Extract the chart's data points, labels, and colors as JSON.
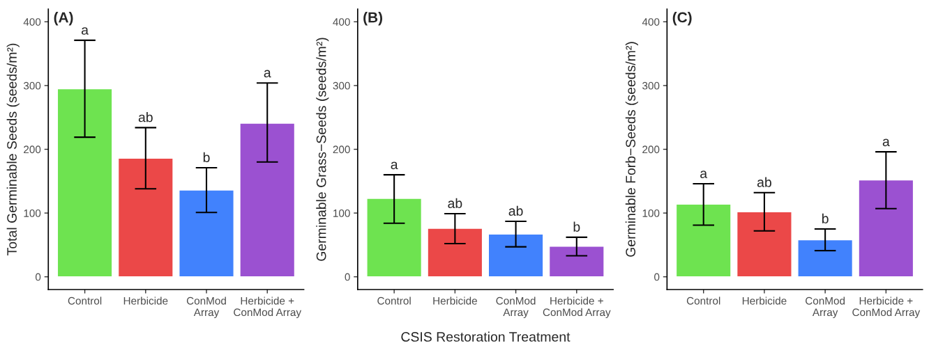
{
  "chart_data": [
    {
      "type": "bar",
      "title": "(A)",
      "ylabel": "Total Germinable Seeds (seeds/m²)",
      "categories": [
        "Control",
        "Herbicide",
        "ConMod\nArray",
        "Herbicide +\nConMod Array"
      ],
      "values": [
        295,
        186,
        136,
        241
      ],
      "colors": [
        "#6ee350",
        "#eb4848",
        "#4182fd",
        "#9b51d1"
      ],
      "errors": [
        [
          219,
          371
        ],
        [
          138,
          234
        ],
        [
          101,
          171
        ],
        [
          180,
          304
        ]
      ],
      "ylim": [
        -20,
        420
      ],
      "yticks": [
        0,
        100,
        200,
        300,
        400
      ],
      "grid": false,
      "legend": false,
      "annotations": [
        {
          "text": "a",
          "x": "Control",
          "y": 371
        },
        {
          "text": "ab",
          "x": "Herbicide",
          "y": 234
        },
        {
          "text": "b",
          "x": "ConMod\nArray",
          "y": 171
        },
        {
          "text": "a",
          "x": "Herbicide +\nConMod Array",
          "y": 304
        }
      ]
    },
    {
      "type": "bar",
      "title": "(B)",
      "ylabel": "Germinable Grass−Seeds (seeds/m²)",
      "xlabel": "CSIS Restoration Treatment",
      "categories": [
        "Control",
        "Herbicide",
        "ConMod\nArray",
        "Herbicide +\nConMod Array"
      ],
      "values": [
        123,
        76,
        67,
        48
      ],
      "colors": [
        "#6ee350",
        "#eb4848",
        "#4182fd",
        "#9b51d1"
      ],
      "errors": [
        [
          84,
          160
        ],
        [
          52,
          99
        ],
        [
          47,
          87
        ],
        [
          33,
          62
        ]
      ],
      "ylim": [
        -20,
        420
      ],
      "yticks": [
        0,
        100,
        200,
        300,
        400
      ],
      "grid": false,
      "legend": false,
      "annotations": [
        {
          "text": "a",
          "x": "Control",
          "y": 160
        },
        {
          "text": "ab",
          "x": "Herbicide",
          "y": 99
        },
        {
          "text": "ab",
          "x": "ConMod\nArray",
          "y": 87
        },
        {
          "text": "b",
          "x": "Herbicide +\nConMod Array",
          "y": 62
        }
      ]
    },
    {
      "type": "bar",
      "title": "(C)",
      "ylabel": "Germinable Forb−Seeds (seeds/m²)",
      "categories": [
        "Control",
        "Herbicide",
        "ConMod\nArray",
        "Herbicide +\nConMod Array"
      ],
      "values": [
        114,
        102,
        58,
        152
      ],
      "colors": [
        "#6ee350",
        "#eb4848",
        "#4182fd",
        "#9b51d1"
      ],
      "errors": [
        [
          81,
          146
        ],
        [
          72,
          132
        ],
        [
          41,
          75
        ],
        [
          107,
          196
        ]
      ],
      "ylim": [
        -20,
        420
      ],
      "yticks": [
        0,
        100,
        200,
        300,
        400
      ],
      "grid": false,
      "legend": false,
      "annotations": [
        {
          "text": "a",
          "x": "Control",
          "y": 146
        },
        {
          "text": "ab",
          "x": "Herbicide",
          "y": 132
        },
        {
          "text": "b",
          "x": "ConMod\nArray",
          "y": 75
        },
        {
          "text": "a",
          "x": "Herbicide +\nConMod Array",
          "y": 196
        }
      ]
    }
  ]
}
